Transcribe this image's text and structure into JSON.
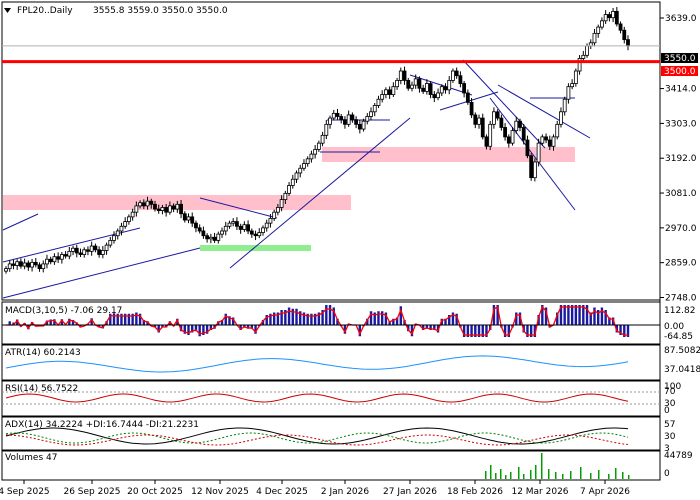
{
  "header": {
    "symbol": "FPL20..Daily",
    "ohlc": "3555.8 3559.0 3550.0 3550.0"
  },
  "price_levels": {
    "current": "3550.0",
    "support": "3500.0",
    "colors": {
      "support": "#ff0000",
      "current_bg": "#000000",
      "support_bg": "#ff0000"
    }
  },
  "panels": {
    "macd": {
      "title": "MACD(3,10,5) -7.06 29.17",
      "ticks": [
        "112.82",
        "0.00",
        "-64.85"
      ]
    },
    "atr": {
      "title": "ATR(14) 60.2143",
      "ticks": [
        "87.5082",
        "37.0418"
      ]
    },
    "rsi": {
      "title": "RSI(14) 56.7522",
      "ticks": [
        "100",
        "70",
        "30",
        "0"
      ]
    },
    "adx": {
      "title": "ADX(14) 34.2224 +DI:16.7444 -DI:21.2231",
      "ticks": [
        "57",
        "30",
        "3"
      ]
    },
    "volume": {
      "title": "Volumes 47",
      "ticks": [
        "44789",
        "0"
      ]
    }
  },
  "chart_data": {
    "type": "candlestick",
    "title": "FPL20..Daily",
    "price_axis_ticks": [
      3639.0,
      3550.0,
      3500.0,
      3414.0,
      3303.0,
      3192.0,
      3081.0,
      2970.0,
      2859.0,
      2748.0
    ],
    "ylim": [
      2740,
      3690
    ],
    "x_labels": [
      "4 Sep 2025",
      "26 Sep 2025",
      "20 Oct 2025",
      "12 Nov 2025",
      "4 Dec 2025",
      "2 Jan 2026",
      "27 Jan 2026",
      "18 Feb 2026",
      "12 Mar 2026",
      "7 Apr 2026"
    ],
    "closes": [
      2840,
      2855,
      2850,
      2862,
      2848,
      2858,
      2845,
      2860,
      2852,
      2840,
      2855,
      2870,
      2862,
      2878,
      2870,
      2885,
      2880,
      2895,
      2905,
      2890,
      2885,
      2900,
      2895,
      2912,
      2900,
      2885,
      2898,
      2915,
      2930,
      2945,
      2960,
      2975,
      2990,
      3005,
      3020,
      3040,
      3050,
      3040,
      3055,
      3045,
      3030,
      3025,
      3035,
      3020,
      3040,
      3030,
      3045,
      3015,
      2995,
      3005,
      2985,
      2970,
      2960,
      2945,
      2935,
      2940,
      2930,
      2950,
      2960,
      2975,
      2985,
      2990,
      2975,
      2965,
      2980,
      2960,
      2950,
      2945,
      2955,
      2970,
      2985,
      3000,
      3020,
      3035,
      3060,
      3080,
      3105,
      3125,
      3145,
      3160,
      3175,
      3190,
      3205,
      3220,
      3240,
      3265,
      3300,
      3320,
      3335,
      3325,
      3315,
      3300,
      3330,
      3315,
      3300,
      3285,
      3310,
      3325,
      3340,
      3360,
      3380,
      3395,
      3410,
      3395,
      3420,
      3440,
      3470,
      3440,
      3415,
      3425,
      3445,
      3415,
      3405,
      3430,
      3395,
      3385,
      3400,
      3420,
      3410,
      3440,
      3470,
      3455,
      3430,
      3400,
      3370,
      3330,
      3300,
      3320,
      3260,
      3230,
      3300,
      3340,
      3320,
      3290,
      3260,
      3240,
      3280,
      3310,
      3290,
      3250,
      3200,
      3130,
      3180,
      3240,
      3260,
      3250,
      3230,
      3260,
      3300,
      3340,
      3380,
      3420,
      3430,
      3470,
      3510,
      3520,
      3550,
      3560,
      3590,
      3610,
      3630,
      3650,
      3640,
      3660,
      3620,
      3600,
      3570,
      3550
    ],
    "indicators": {
      "macd": {
        "params": [
          3,
          10,
          5
        ],
        "macd": -7.06,
        "signal": 29.17
      },
      "atr": {
        "period": 14,
        "value": 60.2143
      },
      "rsi": {
        "period": 14,
        "value": 56.7522,
        "levels": [
          70,
          30
        ]
      },
      "adx": {
        "period": 14,
        "adx": 34.2224,
        "plus_di": 16.7444,
        "minus_di": 21.2231
      },
      "volume": {
        "last": 47,
        "max": 44789
      }
    }
  }
}
